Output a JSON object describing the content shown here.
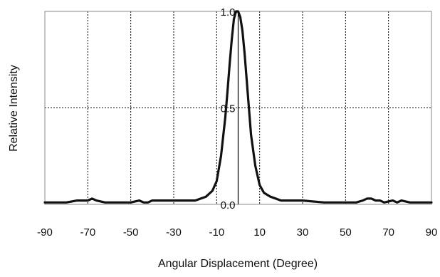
{
  "chart_data": {
    "type": "line",
    "title": "",
    "xlabel": "Angular Displacement (Degree)",
    "ylabel": "Relative Intensity",
    "xlim": [
      -90,
      90
    ],
    "ylim": [
      0,
      1
    ],
    "x_ticks": [
      "-90",
      "-70",
      "-50",
      "-30",
      "-10",
      "10",
      "30",
      "50",
      "70",
      "90"
    ],
    "y_ticks": [
      "0.0",
      "0.5",
      "1.0"
    ],
    "grid": true,
    "center_line_x": 0,
    "series": [
      {
        "x": [
          -90,
          -80,
          -75,
          -70,
          -68,
          -66,
          -62,
          -58,
          -50,
          -46,
          -44,
          -42,
          -40,
          -30,
          -20,
          -15,
          -12,
          -10,
          -8,
          -6,
          -5,
          -4,
          -3,
          -2,
          -1,
          0,
          1,
          2,
          3,
          4,
          5,
          6,
          8,
          10,
          12,
          15,
          20,
          30,
          40,
          50,
          55,
          58,
          60,
          62,
          64,
          66,
          68,
          72,
          74,
          76,
          80,
          90
        ],
        "y": [
          0.01,
          0.01,
          0.02,
          0.02,
          0.03,
          0.02,
          0.01,
          0.01,
          0.01,
          0.02,
          0.01,
          0.01,
          0.02,
          0.02,
          0.02,
          0.04,
          0.07,
          0.12,
          0.25,
          0.45,
          0.58,
          0.72,
          0.85,
          0.96,
          1.0,
          1.0,
          0.97,
          0.9,
          0.78,
          0.64,
          0.5,
          0.36,
          0.2,
          0.1,
          0.06,
          0.04,
          0.02,
          0.02,
          0.01,
          0.01,
          0.01,
          0.02,
          0.03,
          0.03,
          0.02,
          0.02,
          0.01,
          0.02,
          0.01,
          0.02,
          0.01,
          0.01
        ]
      }
    ]
  }
}
